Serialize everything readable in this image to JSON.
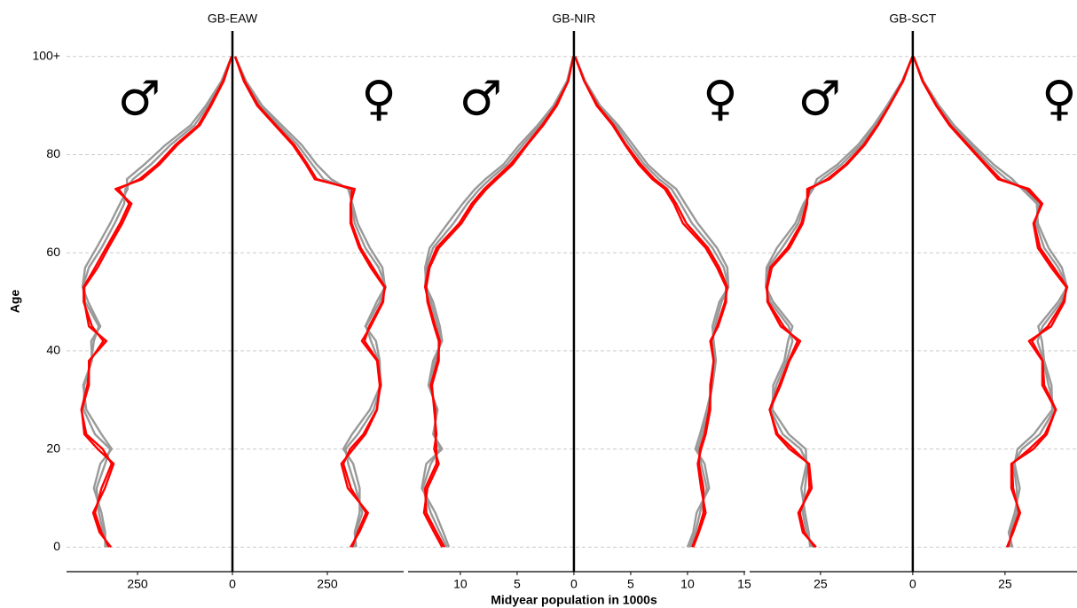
{
  "chart_data": {
    "type": "pyramid",
    "xlabel": "Midyear population in 1000s",
    "ylabel": "Age",
    "male_symbol": "♂",
    "female_symbol": "♀",
    "x": [
      0,
      3,
      7,
      12,
      17,
      20,
      23,
      28,
      33,
      38,
      42,
      45,
      50,
      53,
      57,
      61,
      66,
      70,
      73,
      75,
      78,
      82,
      86,
      90,
      95,
      100
    ],
    "ylim": [
      -5,
      105.2
    ],
    "yticks": [
      0,
      20,
      40,
      60,
      80,
      {
        "value": 100,
        "label": "100+"
      }
    ],
    "grid": true,
    "panels": [
      {
        "title": "GB-EAW",
        "xlim": [
          -437,
          451
        ],
        "xticks": [
          {
            "value": -250,
            "label": "250"
          },
          0,
          250
        ],
        "male": [
          {
            "color": "#999999",
            "values": [
              335,
              335,
              345,
              365,
              348,
              318,
              345,
              385,
              393,
              370,
              372,
              348,
              380,
              395,
              388,
              358,
              322,
              296,
              276,
              278,
              232,
              176,
              110,
              70,
              29,
              2
            ]
          },
          {
            "color": "#999999",
            "values": [
              330,
              340,
              352,
              358,
              335,
              322,
              362,
              392,
              390,
              372,
              365,
              352,
              388,
              394,
              378,
              345,
              310,
              285,
              282,
              262,
              215,
              163,
              100,
              64,
              27,
              2
            ]
          },
          {
            "color": "#ff0000",
            "values": [
              325,
              345,
              362,
              345,
              318,
              342,
              385,
              398,
              382,
              375,
              340,
              370,
              392,
              392,
              362,
              333,
              296,
              272,
              300,
              245,
              198,
              150,
              90,
              59,
              25,
              2
            ]
          },
          {
            "color": "#ff0000",
            "values": [
              320,
              350,
              367,
              336,
              313,
              355,
              390,
              397,
              378,
              378,
              332,
              378,
              390,
              390,
              355,
              327,
              290,
              266,
              308,
              238,
              192,
              145,
              86,
              56,
              23,
              2
            ]
          }
        ],
        "female": [
          {
            "color": "#999999",
            "values": [
              326,
              322,
              335,
              335,
              318,
              292,
              315,
              362,
              390,
              388,
              378,
              350,
              380,
              402,
              395,
              362,
              330,
              316,
              305,
              260,
              222,
              182,
              130,
              78,
              36,
              7
            ]
          },
          {
            "color": "#999999",
            "values": [
              320,
              325,
              342,
              325,
              305,
              298,
              330,
              372,
              392,
              385,
              365,
              352,
              388,
              404,
              385,
              350,
              322,
              314,
              308,
              240,
              210,
              172,
              122,
              73,
              34,
              7
            ]
          },
          {
            "color": "#ff0000",
            "values": [
              315,
              330,
              352,
              312,
              292,
              310,
              345,
              380,
              390,
              383,
              348,
              360,
              395,
              402,
              370,
              338,
              314,
              312,
              315,
              222,
              198,
              163,
              115,
              68,
              32,
              7
            ]
          },
          {
            "color": "#ff0000",
            "values": [
              311,
              334,
              357,
              304,
              287,
              318,
              350,
              381,
              388,
              381,
              341,
              364,
              397,
              400,
              364,
              334,
              311,
              311,
              322,
              217,
              194,
              159,
              112,
              65,
              30,
              7
            ]
          }
        ]
      },
      {
        "title": "GB-NIR",
        "xlim": [
          -14.6,
          15.08
        ],
        "xticks": [
          {
            "value": -10,
            "label": "10"
          },
          {
            "value": -5,
            "label": "5"
          },
          0,
          5,
          10,
          15
        ],
        "male": [
          {
            "color": "#999999",
            "values": [
              11.0,
              11.5,
              12.2,
              13.4,
              13.0,
              11.6,
              12.4,
              12.0,
              12.8,
              12.4,
              11.6,
              11.8,
              12.4,
              13.0,
              13.1,
              12.7,
              11.1,
              9.8,
              8.7,
              7.8,
              6.2,
              4.8,
              3.2,
              1.8,
              0.6,
              0.05
            ]
          },
          {
            "color": "#999999",
            "values": [
              11.2,
              11.8,
              12.6,
              13.3,
              12.6,
              11.8,
              12.3,
              12.1,
              12.7,
              12.2,
              11.7,
              12.0,
              12.6,
              13.1,
              13.0,
              12.4,
              10.6,
              9.4,
              8.3,
              7.4,
              5.9,
              4.5,
              3.0,
              1.7,
              0.6,
              0.05
            ]
          },
          {
            "color": "#ff0000",
            "values": [
              11.4,
              12.1,
              13.0,
              13.1,
              12.1,
              12.1,
              12.2,
              12.2,
              12.6,
              12.0,
              11.8,
              12.2,
              12.8,
              13.1,
              12.8,
              12.1,
              10.1,
              9.0,
              7.9,
              7.0,
              5.6,
              4.2,
              2.8,
              1.6,
              0.5,
              0.05
            ]
          },
          {
            "color": "#ff0000",
            "values": [
              11.6,
              12.3,
              13.2,
              12.9,
              11.9,
              12.3,
              12.1,
              12.3,
              12.5,
              11.9,
              11.9,
              12.3,
              12.9,
              13.0,
              12.7,
              11.9,
              9.9,
              8.8,
              7.7,
              6.8,
              5.4,
              4.1,
              2.7,
              1.5,
              0.5,
              0.05
            ]
          }
        ],
        "female": [
          {
            "color": "#999999",
            "values": [
              10.0,
              10.5,
              10.8,
              11.9,
              11.5,
              10.7,
              11.1,
              11.7,
              12.2,
              12.5,
              12.3,
              12.2,
              12.8,
              13.6,
              13.5,
              12.6,
              10.9,
              9.8,
              9.0,
              7.9,
              6.5,
              5.2,
              3.9,
              2.3,
              1.0,
              0.1
            ]
          },
          {
            "color": "#999999",
            "values": [
              10.2,
              10.7,
              11.1,
              11.7,
              11.2,
              10.9,
              11.3,
              11.8,
              12.2,
              12.4,
              12.2,
              12.4,
              13.0,
              13.6,
              13.2,
              12.2,
              10.4,
              9.4,
              8.6,
              7.5,
              6.2,
              4.9,
              3.7,
              2.2,
              1.0,
              0.1
            ]
          },
          {
            "color": "#ff0000",
            "values": [
              10.4,
              10.9,
              11.4,
              11.4,
              11.0,
              11.1,
              11.5,
              11.9,
              12.1,
              12.3,
              12.1,
              12.6,
              13.3,
              13.5,
              12.8,
              11.8,
              9.9,
              9.0,
              8.2,
              7.1,
              5.9,
              4.6,
              3.5,
              2.1,
              0.9,
              0.1
            ]
          },
          {
            "color": "#ff0000",
            "values": [
              10.5,
              11.0,
              11.6,
              11.2,
              10.9,
              11.2,
              11.6,
              12.0,
              12.0,
              12.3,
              12.0,
              12.7,
              13.4,
              13.4,
              12.6,
              11.6,
              9.6,
              8.8,
              8.0,
              6.9,
              5.7,
              4.5,
              3.4,
              2.0,
              0.9,
              0.1
            ]
          }
        ]
      },
      {
        "title": "GB-SCT",
        "xlim": [
          -44.2,
          44.5
        ],
        "xticks": [
          {
            "value": -25,
            "label": "25"
          },
          0,
          25
        ],
        "male": [
          {
            "color": "#999999",
            "values": [
              27.8,
              28.2,
              29.2,
              30.2,
              28.8,
              29.0,
              33.6,
              38.0,
              37.8,
              34.8,
              33.8,
              32.6,
              37.8,
              39.8,
              39.6,
              36.8,
              31.8,
              29.6,
              27.0,
              26.0,
              20.4,
              14.8,
              10.6,
              7.0,
              2.9,
              0.1
            ]
          },
          {
            "color": "#999999",
            "values": [
              27.2,
              28.8,
              29.8,
              29.2,
              28.5,
              30.4,
              35.2,
              38.6,
              37.0,
              34.2,
              32.6,
              33.6,
              38.6,
              39.8,
              39.2,
              35.4,
              31.0,
              29.2,
              27.4,
              24.6,
              19.3,
              14.0,
              10.1,
              6.7,
              2.8,
              0.1
            ]
          },
          {
            "color": "#ff0000",
            "values": [
              26.6,
              29.4,
              30.6,
              28.0,
              28.3,
              32.4,
              36.6,
              38.8,
              36.2,
              33.6,
              31.2,
              35.0,
              39.2,
              39.6,
              38.6,
              34.0,
              30.2,
              28.8,
              28.0,
              23.2,
              18.2,
              13.3,
              9.6,
              6.4,
              2.7,
              0.1
            ]
          },
          {
            "color": "#ff0000",
            "values": [
              26.2,
              29.8,
              31.0,
              27.4,
              28.1,
              33.4,
              37.0,
              38.7,
              35.8,
              33.4,
              30.5,
              35.8,
              39.4,
              39.4,
              38.2,
              33.4,
              29.8,
              28.6,
              28.6,
              22.6,
              17.8,
              13.0,
              9.4,
              6.3,
              2.6,
              0.1
            ]
          }
        ],
        "female": [
          {
            "color": "#999999",
            "values": [
              27.0,
              26.0,
              27.6,
              29.0,
              27.6,
              28.4,
              32.8,
              37.8,
              37.6,
              35.6,
              35.0,
              34.0,
              39.4,
              41.8,
              40.4,
              36.8,
              33.9,
              33.6,
              29.6,
              27.0,
              21.9,
              16.4,
              11.2,
              7.1,
              2.9,
              0.2
            ]
          },
          {
            "color": "#999999",
            "values": [
              26.4,
              26.4,
              28.2,
              28.2,
              27.2,
              29.6,
              34.4,
              38.4,
              36.8,
              35.4,
              33.8,
              35.2,
              40.2,
              41.9,
              39.4,
              35.6,
              33.4,
              34.2,
              30.0,
              25.4,
              20.8,
              15.7,
              10.7,
              6.8,
              2.8,
              0.2
            ]
          },
          {
            "color": "#ff0000",
            "values": [
              25.8,
              26.9,
              28.8,
              27.2,
              26.9,
              31.6,
              35.8,
              38.8,
              35.6,
              35.2,
              32.3,
              36.6,
              40.8,
              41.8,
              38.2,
              34.5,
              32.9,
              34.8,
              30.8,
              23.8,
              19.9,
              15.0,
              10.2,
              6.5,
              2.7,
              0.2
            ]
          },
          {
            "color": "#ff0000",
            "values": [
              25.5,
              27.2,
              29.1,
              26.7,
              26.7,
              32.7,
              36.3,
              38.7,
              35.1,
              35.1,
              31.5,
              37.5,
              41.1,
              41.6,
              37.5,
              33.9,
              32.7,
              35.1,
              31.5,
              23.1,
              19.5,
              14.7,
              9.9,
              6.3,
              2.6,
              0.2
            ]
          }
        ]
      }
    ]
  }
}
